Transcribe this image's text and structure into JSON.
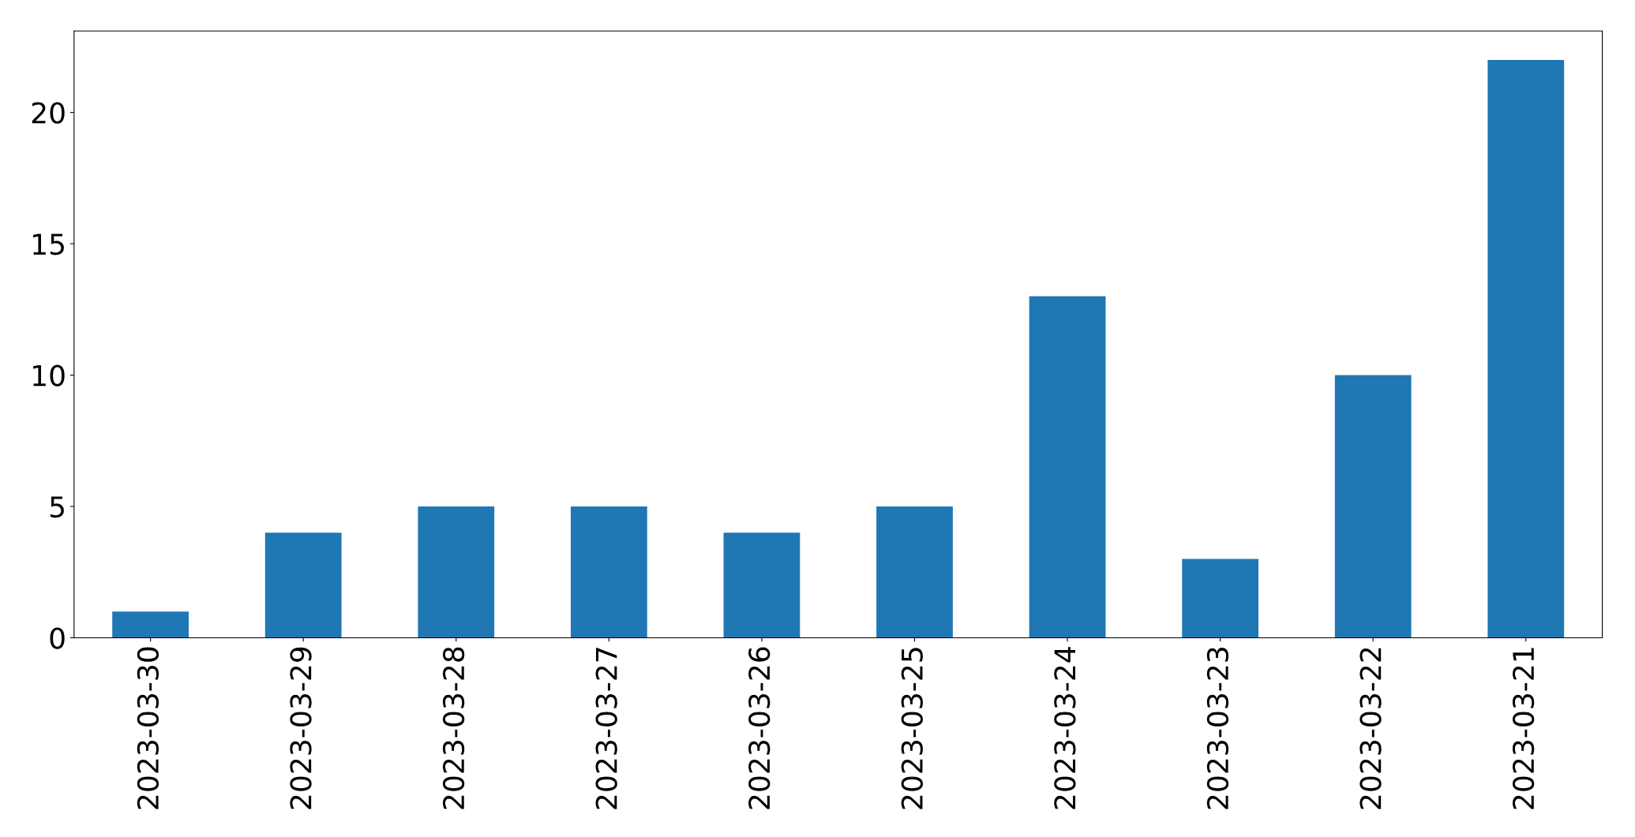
{
  "chart_data": {
    "type": "bar",
    "categories": [
      "2023-03-30",
      "2023-03-29",
      "2023-03-28",
      "2023-03-27",
      "2023-03-26",
      "2023-03-25",
      "2023-03-24",
      "2023-03-23",
      "2023-03-22",
      "2023-03-21"
    ],
    "values": [
      1,
      4,
      5,
      5,
      4,
      5,
      13,
      3,
      10,
      22
    ],
    "color": "#1f77b4",
    "ylim": [
      0,
      23.1
    ],
    "yticks": [
      0,
      5,
      10,
      15,
      20
    ],
    "grid": false,
    "legend": false
  }
}
